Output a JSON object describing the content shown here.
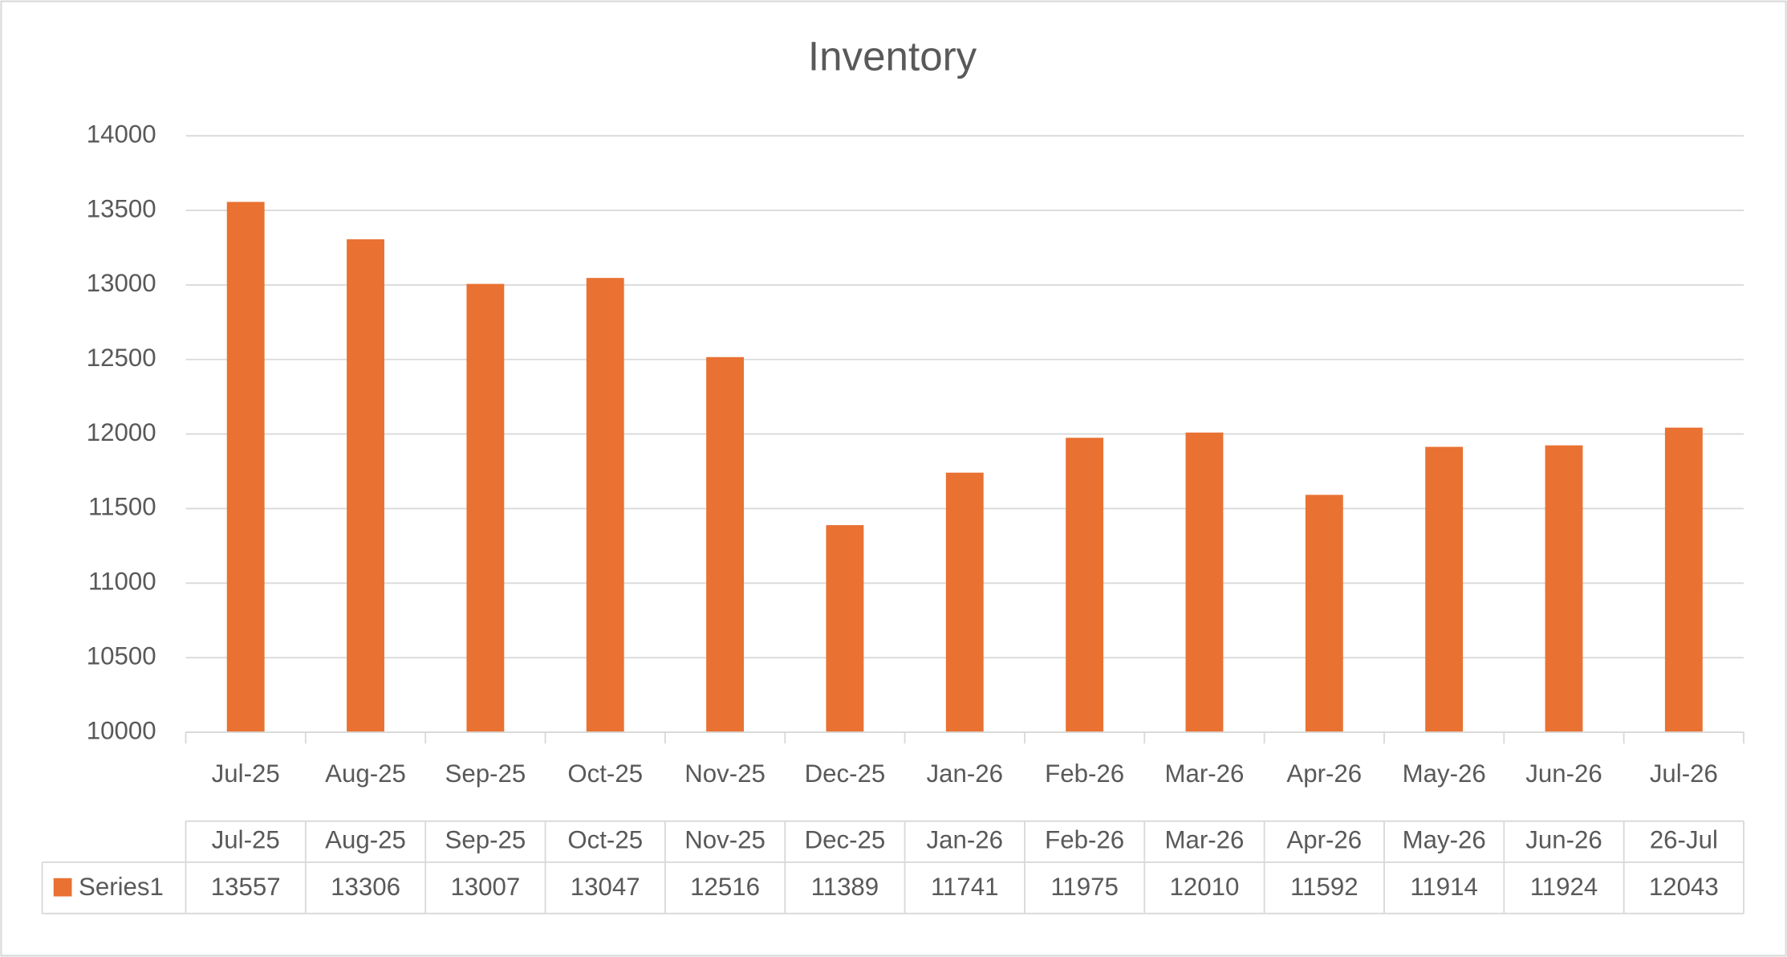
{
  "chart_data": {
    "type": "bar",
    "title": "Inventory",
    "categories": [
      "Jul-25",
      "Aug-25",
      "Sep-25",
      "Oct-25",
      "Nov-25",
      "Dec-25",
      "Jan-26",
      "Feb-26",
      "Mar-26",
      "Apr-26",
      "May-26",
      "Jun-26",
      "Jul-26"
    ],
    "series": [
      {
        "name": "Series1",
        "color": "#e97132",
        "values": [
          13557,
          13306,
          13007,
          13047,
          12516,
          11389,
          11741,
          11975,
          12010,
          11592,
          11914,
          11924,
          12043
        ]
      }
    ],
    "ylim": [
      10000,
      14000
    ],
    "yticks": [
      10000,
      10500,
      11000,
      11500,
      12000,
      12500,
      13000,
      13500,
      14000
    ],
    "grid": true,
    "data_table": {
      "categories": [
        "Jul-25",
        "Aug-25",
        "Sep-25",
        "Oct-25",
        "Nov-25",
        "Dec-25",
        "Jan-26",
        "Feb-26",
        "Mar-26",
        "Apr-26",
        "May-26",
        "Jun-26",
        "26-Jul"
      ]
    }
  }
}
